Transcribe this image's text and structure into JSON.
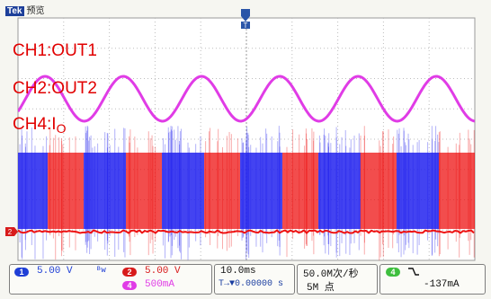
{
  "window": {
    "brand": "Tek",
    "mode": "预览"
  },
  "channel_labels": {
    "ch1": "CH1:OUT1",
    "ch2": "CH2:OUT2",
    "ch4_prefix": "CH4:I",
    "ch4_subscript": "O"
  },
  "markers": {
    "ch2_ground": "2",
    "trigger_top": "T"
  },
  "readout": {
    "ch1": {
      "badge": "1",
      "scale": "5.00 V",
      "coupling_icon": "ᴮw"
    },
    "ch2": {
      "badge": "2",
      "scale": "5.00 V"
    },
    "ch4": {
      "badge": "4",
      "scale": "500mA"
    },
    "timebase": "10.0ms",
    "trigger_position": "T→▼0.00000 s",
    "sample_rate": "50.0M次/秒",
    "record_length": "5M 点",
    "trigger_source_badge": "4",
    "trigger_slope_icon": "falling-edge",
    "trigger_level": "-137mA"
  },
  "colors": {
    "ch1": "#2222ee",
    "ch2": "#ee1111",
    "ch4": "#e03ce6",
    "ch3_trigger": "#3fbf3f",
    "grid": "#bdbdbd",
    "label_text": "#e10000"
  },
  "chart_data": {
    "type": "line",
    "xlabel": "",
    "ylabel": "",
    "grid": true,
    "timebase_per_div": "10.0ms",
    "series": [
      {
        "name": "CH1:OUT1",
        "values": []
      },
      {
        "name": "CH2:OUT2",
        "values": []
      },
      {
        "name": "CH4:IO",
        "values": []
      }
    ]
  }
}
